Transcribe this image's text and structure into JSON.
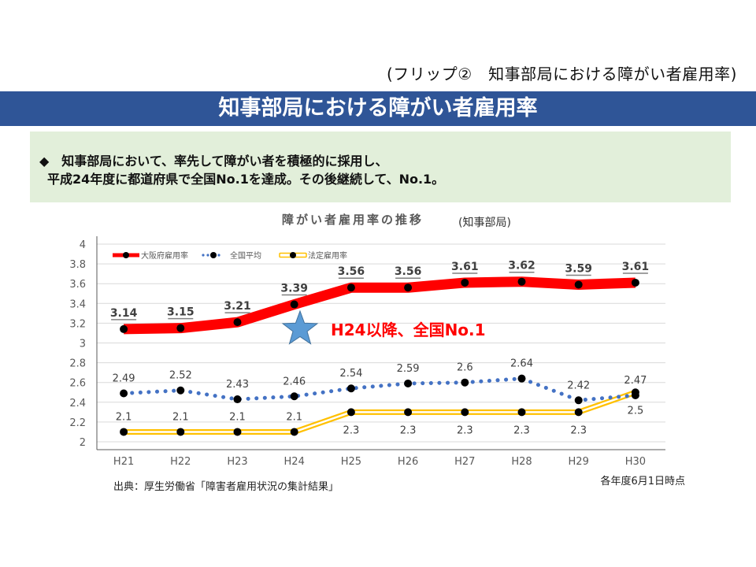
{
  "header": {
    "flip_label": "(フリップ②　知事部局における障がい者雇用率)",
    "title": "知事部局における障がい者雇用率"
  },
  "summary": {
    "line1": "◆　知事部局において、率先して障がい者を積極的に採用し、",
    "line2": "平成24年度に都道府県で全国No.1を達成。その後継続して、No.1。"
  },
  "callout": {
    "text": "H24以降、全国No.1",
    "icon": "star-icon",
    "color": "#ff0000",
    "star_color": "#5b9bd5"
  },
  "footer": {
    "source": "出典：厚生労働省「障害者雇用状況の集計結果」",
    "as_of": "各年度6月1日時点"
  },
  "chart_data": {
    "type": "line",
    "title": "障がい者雇用率の推移",
    "subtitle": "(知事部局)",
    "xlabel": "",
    "ylabel": "",
    "categories": [
      "H21",
      "H22",
      "H23",
      "H24",
      "H25",
      "H26",
      "H27",
      "H28",
      "H29",
      "H30"
    ],
    "ylim": [
      2,
      4
    ],
    "yticks": [
      "2",
      "2.2",
      "2.4",
      "2.6",
      "2.8",
      "3",
      "3.2",
      "3.4",
      "3.6",
      "3.8",
      "4"
    ],
    "grid": true,
    "legend_position": "top-left",
    "series": [
      {
        "name": "大阪府雇用率",
        "style": "thick-solid",
        "color": "#ff0000",
        "values": [
          3.14,
          3.15,
          3.21,
          3.39,
          3.56,
          3.56,
          3.61,
          3.62,
          3.59,
          3.61
        ],
        "labels": [
          "3.14",
          "3.15",
          "3.21",
          "3.39",
          "3.56",
          "3.56",
          "3.61",
          "3.62",
          "3.59",
          "3.61"
        ]
      },
      {
        "name": "全国平均",
        "style": "dotted",
        "color": "#4472c4",
        "values": [
          2.49,
          2.52,
          2.43,
          2.46,
          2.54,
          2.59,
          2.6,
          2.64,
          2.42,
          2.47
        ],
        "labels": [
          "2.49",
          "2.52",
          "2.43",
          "2.46",
          "2.54",
          "2.59",
          "2.6",
          "2.64",
          "2.42",
          "2.47"
        ]
      },
      {
        "name": "法定雇用率",
        "style": "double",
        "color": "#ffc000",
        "values": [
          2.1,
          2.1,
          2.1,
          2.1,
          2.3,
          2.3,
          2.3,
          2.3,
          2.3,
          2.5
        ],
        "labels": [
          "2.1",
          "2.1",
          "2.1",
          "2.1",
          "2.3",
          "2.3",
          "2.3",
          "2.3",
          "2.3",
          "2.5"
        ]
      }
    ]
  }
}
